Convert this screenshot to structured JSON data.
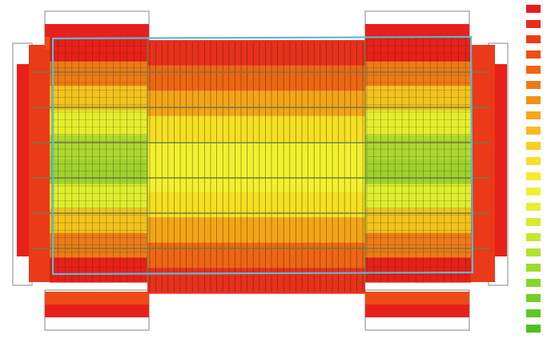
{
  "colors": {
    "background": "#ffffff",
    "outline": "#9a9a9a",
    "band_divider": "#6e7f45",
    "boundary": "#5ab8d8",
    "mesh_line": "#2a2a10"
  },
  "contour_palette": [
    "#e81c1c",
    "#ea2a1a",
    "#ec3c18",
    "#ee4e16",
    "#f06414",
    "#f27a14",
    "#f49016",
    "#f6a61a",
    "#f8bc1e",
    "#f9d022",
    "#fadf28",
    "#f9ea30",
    "#f3ef34",
    "#e6ef34",
    "#d5ec32",
    "#c3e830",
    "#b0e32e",
    "#9cdd2c",
    "#86d62a",
    "#70cf28",
    "#5cc826",
    "#4cc124"
  ],
  "legend": {
    "swatch_count": 22
  },
  "field": {
    "top_bottom_bands": [
      "#e8301c",
      "#ee6614",
      "#f4a418",
      "#f6e022",
      "#f3f12e",
      "#f3f12e",
      "#f6e022",
      "#f4a418",
      "#ee6614",
      "#e8301c"
    ],
    "side_bands": [
      "#e82018",
      "#ef7a16",
      "#f3c21c",
      "#e6ee2c",
      "#acd830",
      "#9ed22c",
      "#e0ec2e",
      "#f2c21c",
      "#ee7a16",
      "#e82018"
    ]
  }
}
